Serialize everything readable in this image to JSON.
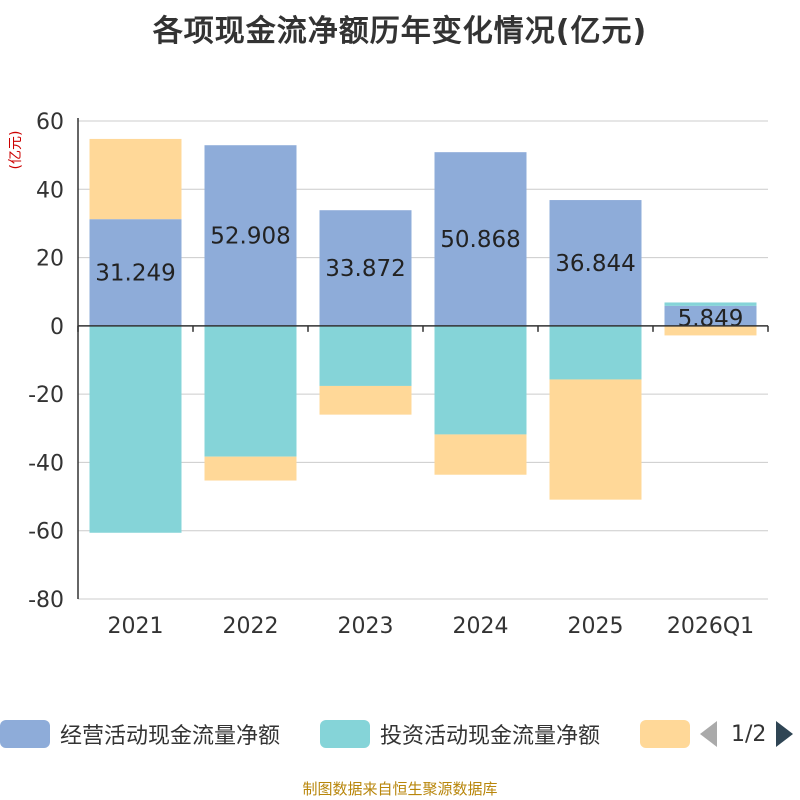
{
  "chart_data": {
    "type": "bar",
    "stacked": true,
    "title": "各项现金流净额历年变化情况(亿元)",
    "ylabel": "(亿元)",
    "ylim": [
      -80,
      60
    ],
    "yticks": [
      60,
      40,
      20,
      0,
      -20,
      -40,
      -60,
      -80
    ],
    "grid": true,
    "categories": [
      "2021",
      "2022",
      "2023",
      "2024",
      "2025",
      "2026Q1"
    ],
    "series": [
      {
        "name": "经营活动现金流量净额",
        "color": "#8eacd9",
        "values": [
          31.249,
          52.908,
          33.872,
          50.868,
          36.844,
          5.849
        ]
      },
      {
        "name": "投资活动现金流量净额",
        "color": "#85d4d8",
        "values": [
          -60.6,
          -38.3,
          -17.6,
          -31.8,
          -15.7,
          1.0
        ]
      },
      {
        "name": "",
        "color": "#ffd898",
        "values": [
          23.5,
          -7.0,
          -8.4,
          -11.8,
          -35.2,
          -2.8
        ]
      }
    ],
    "data_labels": [
      "31.249",
      "52.908",
      "33.872",
      "50.868",
      "36.844",
      "5.849"
    ],
    "legend": {
      "position": "bottom",
      "page": "1/2"
    }
  },
  "footer": {
    "source": "制图数据来自恒生聚源数据库"
  }
}
